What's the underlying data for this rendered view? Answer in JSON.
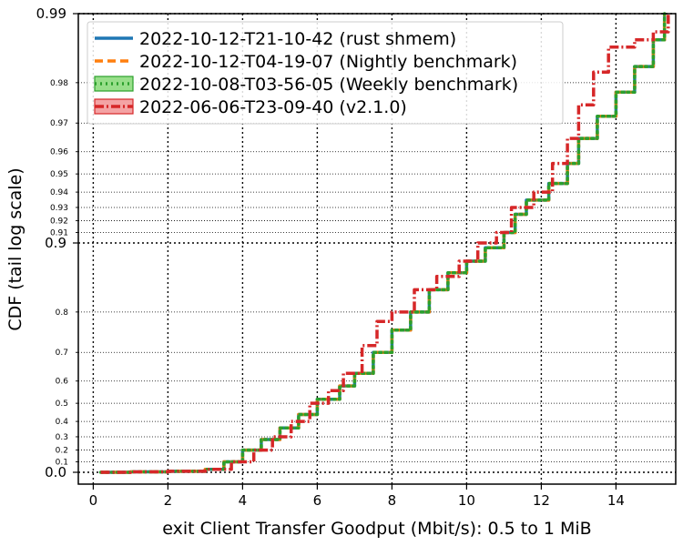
{
  "chart_data": {
    "type": "line",
    "xlabel": "exit Client Transfer Goodput (Mbit/s): 0.5 to 1 MiB",
    "ylabel": "CDF (tail log scale)",
    "y_scale": "tail log (log of 1 - p)",
    "xlim": [
      -0.4,
      15.6
    ],
    "x_ticks": [
      0,
      2,
      4,
      6,
      8,
      10,
      12,
      14
    ],
    "x_tick_labels": [
      "0",
      "2",
      "4",
      "6",
      "8",
      "10",
      "12",
      "14"
    ],
    "y_major_ticks": [
      0.0,
      0.9,
      0.99
    ],
    "y_major_tick_labels": [
      "0.0",
      "0.9",
      "0.99"
    ],
    "y_minor_ticks": [
      0.1,
      0.2,
      0.3,
      0.4,
      0.5,
      0.6,
      0.7,
      0.8,
      0.91,
      0.92,
      0.93,
      0.94,
      0.95,
      0.96,
      0.97,
      0.98
    ],
    "y_minor_tick_labels": [
      "0.1",
      "0.2",
      "0.3",
      "0.4",
      "0.5",
      "0.6",
      "0.7",
      "0.8",
      "0.91",
      "0.92",
      "0.93",
      "0.94",
      "0.95",
      "0.96",
      "0.97",
      "0.98"
    ],
    "grid": true,
    "legend_position": "top-left",
    "series": [
      {
        "name": "2022-10-12-T21-10-42 (rust shmem)",
        "color": "#1f77b4",
        "style": "solid",
        "points": [
          [
            0.2,
            0.0
          ],
          [
            1.0,
            0.005
          ],
          [
            2.0,
            0.01
          ],
          [
            3.0,
            0.03
          ],
          [
            3.5,
            0.1
          ],
          [
            4.0,
            0.2
          ],
          [
            4.5,
            0.28
          ],
          [
            5.0,
            0.36
          ],
          [
            5.5,
            0.44
          ],
          [
            6.0,
            0.52
          ],
          [
            6.6,
            0.58
          ],
          [
            7.0,
            0.63
          ],
          [
            7.5,
            0.7
          ],
          [
            8.0,
            0.76
          ],
          [
            8.5,
            0.8
          ],
          [
            9.0,
            0.84
          ],
          [
            9.5,
            0.865
          ],
          [
            10.0,
            0.88
          ],
          [
            10.5,
            0.895
          ],
          [
            11.0,
            0.91
          ],
          [
            11.3,
            0.925
          ],
          [
            11.6,
            0.935
          ],
          [
            12.2,
            0.945
          ],
          [
            12.7,
            0.955
          ],
          [
            13.0,
            0.965
          ],
          [
            13.5,
            0.972
          ],
          [
            14.0,
            0.978
          ],
          [
            14.5,
            0.983
          ],
          [
            15.0,
            0.987
          ],
          [
            15.3,
            0.99
          ]
        ]
      },
      {
        "name": "2022-10-12-T04-19-07 (Nightly benchmark)",
        "color": "#ff7f0e",
        "style": "dashed",
        "points": [
          [
            0.2,
            0.0
          ],
          [
            1.0,
            0.005
          ],
          [
            2.0,
            0.01
          ],
          [
            3.0,
            0.03
          ],
          [
            3.5,
            0.1
          ],
          [
            4.0,
            0.2
          ],
          [
            4.5,
            0.28
          ],
          [
            5.0,
            0.36
          ],
          [
            5.5,
            0.44
          ],
          [
            6.0,
            0.52
          ],
          [
            6.6,
            0.58
          ],
          [
            7.0,
            0.63
          ],
          [
            7.5,
            0.7
          ],
          [
            8.0,
            0.76
          ],
          [
            8.5,
            0.8
          ],
          [
            9.0,
            0.84
          ],
          [
            9.5,
            0.865
          ],
          [
            10.0,
            0.88
          ],
          [
            10.5,
            0.895
          ],
          [
            11.0,
            0.91
          ],
          [
            11.3,
            0.925
          ],
          [
            11.6,
            0.935
          ],
          [
            12.2,
            0.945
          ],
          [
            12.7,
            0.955
          ],
          [
            13.0,
            0.965
          ],
          [
            13.5,
            0.972
          ],
          [
            14.0,
            0.978
          ],
          [
            14.5,
            0.983
          ],
          [
            15.0,
            0.987
          ],
          [
            15.3,
            0.99
          ]
        ]
      },
      {
        "name": "2022-10-08-T03-56-05 (Weekly benchmark)",
        "color": "#2ca02c",
        "style": "dotted",
        "points": [
          [
            0.2,
            0.0
          ],
          [
            1.0,
            0.005
          ],
          [
            2.0,
            0.01
          ],
          [
            3.0,
            0.03
          ],
          [
            3.5,
            0.1
          ],
          [
            4.0,
            0.2
          ],
          [
            4.5,
            0.28
          ],
          [
            5.0,
            0.36
          ],
          [
            5.5,
            0.44
          ],
          [
            6.0,
            0.52
          ],
          [
            6.6,
            0.58
          ],
          [
            7.0,
            0.63
          ],
          [
            7.5,
            0.7
          ],
          [
            8.0,
            0.76
          ],
          [
            8.5,
            0.8
          ],
          [
            9.0,
            0.84
          ],
          [
            9.5,
            0.865
          ],
          [
            10.0,
            0.88
          ],
          [
            10.5,
            0.895
          ],
          [
            11.0,
            0.91
          ],
          [
            11.3,
            0.925
          ],
          [
            11.6,
            0.935
          ],
          [
            12.2,
            0.945
          ],
          [
            12.7,
            0.955
          ],
          [
            13.0,
            0.965
          ],
          [
            13.5,
            0.972
          ],
          [
            14.0,
            0.978
          ],
          [
            14.5,
            0.983
          ],
          [
            15.0,
            0.987
          ],
          [
            15.3,
            0.99
          ]
        ]
      },
      {
        "name": "2022-06-06-T23-09-40 (v2.1.0)",
        "color": "#d62728",
        "style": "dashdot",
        "points": [
          [
            0.2,
            0.0
          ],
          [
            1.0,
            0.005
          ],
          [
            2.0,
            0.01
          ],
          [
            3.0,
            0.03
          ],
          [
            3.7,
            0.1
          ],
          [
            4.3,
            0.2
          ],
          [
            4.8,
            0.3
          ],
          [
            5.3,
            0.4
          ],
          [
            5.8,
            0.5
          ],
          [
            6.3,
            0.56
          ],
          [
            6.7,
            0.63
          ],
          [
            7.2,
            0.72
          ],
          [
            7.6,
            0.78
          ],
          [
            8.0,
            0.8
          ],
          [
            8.6,
            0.84
          ],
          [
            9.2,
            0.86
          ],
          [
            9.8,
            0.88
          ],
          [
            10.3,
            0.9
          ],
          [
            10.8,
            0.91
          ],
          [
            11.2,
            0.93
          ],
          [
            11.8,
            0.94
          ],
          [
            12.3,
            0.955
          ],
          [
            12.7,
            0.965
          ],
          [
            13.0,
            0.975
          ],
          [
            13.4,
            0.982
          ],
          [
            13.8,
            0.986
          ],
          [
            14.5,
            0.987
          ],
          [
            15.0,
            0.988
          ],
          [
            15.4,
            0.99
          ]
        ]
      }
    ]
  }
}
